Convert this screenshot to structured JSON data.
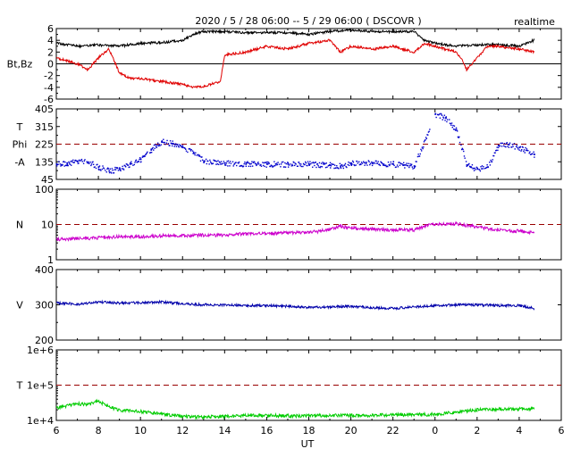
{
  "header": {
    "title": "2020 / 5 / 28   06:00 -- 5 / 29  06:00  ( DSCOVR )",
    "mode": "realtime"
  },
  "colors": {
    "bt": "#000000",
    "bz": "#e00000",
    "phi": "#0000cc",
    "density": "#cc00cc",
    "speed": "#0000aa",
    "temperature": "#00cc00",
    "reference": "#990000"
  },
  "chart_data": [
    {
      "type": "line",
      "id": "magnetic",
      "ylabel": "Bt,Bz",
      "ylim": [
        -6,
        6
      ],
      "yticks": [
        "6",
        "4",
        "2",
        "0",
        "-2",
        "-4",
        "-6"
      ],
      "zero_line": 0,
      "series": [
        {
          "key": "bt",
          "x": [
            6,
            7,
            8,
            9,
            10,
            11,
            12,
            12.5,
            13,
            14,
            15,
            16,
            17,
            18,
            19,
            20,
            21,
            22,
            23,
            23.5,
            0,
            1,
            2,
            3,
            4,
            4.7
          ],
          "y": [
            3.5,
            3.0,
            3.2,
            3.0,
            3.5,
            3.6,
            4.0,
            5.0,
            5.5,
            5.5,
            5.3,
            5.3,
            5.3,
            5.0,
            5.5,
            5.8,
            5.5,
            5.5,
            5.5,
            4.0,
            3.5,
            3.0,
            3.2,
            3.3,
            3.0,
            4.0
          ]
        },
        {
          "key": "bz",
          "x": [
            6,
            6.5,
            7,
            7.5,
            8,
            8.5,
            9,
            9.5,
            10,
            11,
            12,
            12.5,
            13,
            13.8,
            14,
            15,
            16,
            17,
            18,
            19,
            19.5,
            20,
            21,
            22,
            23,
            23.5,
            0,
            0.5,
            1,
            1.3,
            1.5,
            2,
            2.5,
            3,
            4,
            4.7
          ],
          "y": [
            1.0,
            0.5,
            0.0,
            -1.0,
            1.0,
            2.5,
            -1.5,
            -2.5,
            -2.5,
            -3.0,
            -3.5,
            -4.0,
            -3.8,
            -3.0,
            1.5,
            2.0,
            3.0,
            2.5,
            3.5,
            4.0,
            2.0,
            3.0,
            2.5,
            3.0,
            2.0,
            3.5,
            3.0,
            2.5,
            2.0,
            0.5,
            -1.0,
            1.0,
            3.0,
            3.0,
            2.5,
            2.0
          ]
        }
      ]
    },
    {
      "type": "scatter",
      "id": "phi",
      "ylabel_lines": [
        "T",
        "Phi",
        "-A"
      ],
      "ylim": [
        45,
        405
      ],
      "yticks": [
        "405",
        "315",
        "225",
        "135",
        "45"
      ],
      "reference_line": 225,
      "series": [
        {
          "key": "phi",
          "x": [
            6,
            6.5,
            7,
            7.5,
            8,
            8.5,
            9,
            9.5,
            10,
            10.5,
            11,
            11.5,
            12,
            12.5,
            13,
            14,
            15,
            16,
            17,
            18,
            19,
            19.5,
            20,
            21,
            22,
            22.5,
            23,
            0,
            0.5,
            1,
            1.5,
            2,
            2.5,
            3,
            3.5,
            4,
            4.7
          ],
          "y": [
            125,
            130,
            140,
            135,
            110,
            90,
            100,
            125,
            150,
            200,
            240,
            230,
            210,
            180,
            140,
            130,
            125,
            125,
            125,
            125,
            120,
            115,
            130,
            130,
            125,
            120,
            115,
            380,
            360,
            300,
            120,
            100,
            110,
            220,
            225,
            210,
            175
          ]
        }
      ]
    },
    {
      "type": "line",
      "id": "density",
      "ylabel": "N",
      "yscale": "log",
      "ylim": [
        1,
        100
      ],
      "yticks": [
        "100",
        "10",
        "1"
      ],
      "reference_line": 10,
      "series": [
        {
          "key": "density",
          "x": [
            6,
            7,
            8,
            9,
            10,
            11,
            12,
            13,
            14,
            15,
            16,
            17,
            18,
            19,
            19.5,
            20,
            21,
            22,
            23,
            23.5,
            0,
            1,
            2,
            3,
            4,
            4.7
          ],
          "y": [
            3.8,
            4.0,
            4.2,
            4.5,
            4.5,
            4.8,
            4.8,
            5.0,
            5.0,
            5.5,
            5.5,
            5.8,
            6.0,
            7.0,
            9.0,
            8.0,
            7.5,
            7.0,
            7.0,
            9.0,
            10.0,
            10.5,
            8.5,
            7.0,
            6.5,
            6.0
          ]
        }
      ]
    },
    {
      "type": "line",
      "id": "speed",
      "ylabel": "V",
      "ylim": [
        200,
        400
      ],
      "yticks": [
        "400",
        "300",
        "200"
      ],
      "series": [
        {
          "key": "speed",
          "x": [
            6,
            7,
            8,
            9,
            10,
            11,
            12,
            13,
            14,
            15,
            16,
            17,
            18,
            19,
            20,
            21,
            22,
            23,
            0,
            1,
            2,
            3,
            4,
            4.7
          ],
          "y": [
            305,
            302,
            308,
            305,
            306,
            308,
            303,
            300,
            300,
            298,
            298,
            296,
            292,
            294,
            296,
            292,
            290,
            294,
            298,
            300,
            300,
            298,
            298,
            290
          ]
        }
      ]
    },
    {
      "type": "line",
      "id": "temperature",
      "ylabel": "T",
      "yscale": "log",
      "ylim": [
        10000,
        1000000
      ],
      "yticks": [
        "1e+6",
        "1e+5",
        "1e+4"
      ],
      "reference_line": 100000,
      "series": [
        {
          "key": "temperature",
          "x": [
            6,
            6.5,
            7,
            7.5,
            8,
            8.5,
            9,
            10,
            11,
            12,
            13,
            14,
            15,
            16,
            17,
            18,
            19,
            20,
            21,
            22,
            23,
            0,
            1,
            2,
            3,
            4,
            4.7
          ],
          "y": [
            22000,
            26000,
            30000,
            28000,
            35000,
            24000,
            20000,
            18000,
            15000,
            13000,
            12500,
            13000,
            14000,
            14000,
            13500,
            13500,
            14000,
            14000,
            14000,
            14500,
            14500,
            15000,
            17000,
            20000,
            21000,
            21000,
            22000
          ]
        }
      ]
    }
  ],
  "x_axis": {
    "label": "UT",
    "ticks": [
      "6",
      "8",
      "10",
      "12",
      "14",
      "16",
      "18",
      "20",
      "22",
      "0",
      "2",
      "4",
      "6"
    ]
  }
}
